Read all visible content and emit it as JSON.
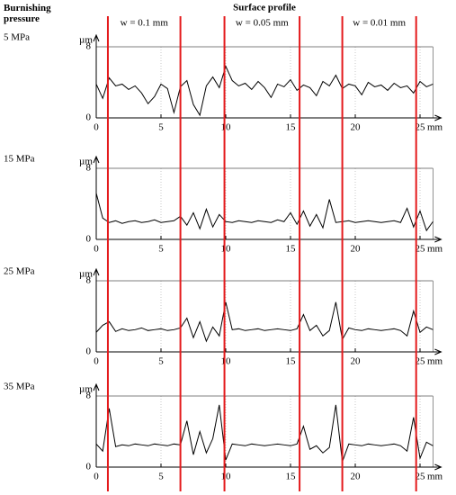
{
  "header": {
    "left": "Burnishing pressure",
    "center": "Surface profile"
  },
  "annotations": {
    "boundaries": [
      0.9,
      6.5,
      9.9,
      15.7,
      19.0,
      24.7
    ],
    "region_labels": [
      "w = 0.1 mm",
      "w = 0.05 mm",
      "w = 0.01 mm"
    ],
    "color": "#e41a1c"
  },
  "chart_data": [
    {
      "type": "line",
      "title": "5 MPa",
      "y_label": "µm",
      "x_label": "mm",
      "color": "#000000",
      "grid": true,
      "xlim": [
        0,
        26
      ],
      "ylim": [
        0,
        8
      ],
      "xticks": [
        0,
        5,
        10,
        15,
        20,
        25
      ],
      "yticks": [
        0,
        8
      ],
      "x": [
        0,
        0.5,
        1,
        1.5,
        2,
        2.5,
        3,
        3.5,
        4,
        4.5,
        5,
        5.5,
        6,
        6.5,
        7,
        7.5,
        8,
        8.5,
        9,
        9.5,
        10,
        10.5,
        11,
        11.5,
        12,
        12.5,
        13,
        13.5,
        14,
        14.5,
        15,
        15.5,
        16,
        16.5,
        17,
        17.5,
        18,
        18.5,
        19,
        19.5,
        20,
        20.5,
        21,
        21.5,
        22,
        22.5,
        23,
        23.5,
        24,
        24.5,
        25,
        25.5,
        26
      ],
      "values": [
        3.8,
        2.2,
        4.5,
        3.6,
        3.8,
        3.2,
        3.6,
        2.8,
        1.6,
        2.4,
        3.8,
        3.3,
        0.6,
        3.5,
        4.2,
        1.5,
        0.3,
        3.6,
        4.6,
        3.4,
        5.8,
        4.2,
        3.6,
        3.9,
        3.2,
        4.1,
        3.4,
        2.3,
        3.8,
        3.5,
        4.3,
        3.1,
        3.7,
        3.4,
        2.5,
        4.1,
        3.6,
        4.8,
        3.3,
        3.8,
        3.6,
        2.6,
        4.0,
        3.5,
        3.7,
        3.1,
        3.9,
        3.4,
        3.6,
        2.8,
        4.1,
        3.5,
        3.8
      ]
    },
    {
      "type": "line",
      "title": "15 MPa",
      "y_label": "µm",
      "x_label": "mm",
      "color": "#000000",
      "grid": true,
      "xlim": [
        0,
        26
      ],
      "ylim": [
        0,
        8
      ],
      "xticks": [
        0,
        5,
        10,
        15,
        20,
        25
      ],
      "yticks": [
        0,
        8
      ],
      "x": [
        0,
        0.5,
        1,
        1.5,
        2,
        2.5,
        3,
        3.5,
        4,
        4.5,
        5,
        5.5,
        6,
        6.5,
        7,
        7.5,
        8,
        8.5,
        9,
        9.5,
        10,
        10.5,
        11,
        11.5,
        12,
        12.5,
        13,
        13.5,
        14,
        14.5,
        15,
        15.5,
        16,
        16.5,
        17,
        17.5,
        18,
        18.5,
        19,
        19.5,
        20,
        20.5,
        21,
        21.5,
        22,
        22.5,
        23,
        23.5,
        24,
        24.5,
        25,
        25.5,
        26
      ],
      "values": [
        5.2,
        2.4,
        1.9,
        2.1,
        1.8,
        2.0,
        2.1,
        1.9,
        2.0,
        2.2,
        1.9,
        2.0,
        2.1,
        2.6,
        1.6,
        3.0,
        1.2,
        3.4,
        1.4,
        2.8,
        2.0,
        1.9,
        2.1,
        2.0,
        1.9,
        2.1,
        2.0,
        1.9,
        2.2,
        2.0,
        3.0,
        1.7,
        3.2,
        1.5,
        2.8,
        1.3,
        4.5,
        1.9,
        2.0,
        2.1,
        1.9,
        2.0,
        2.1,
        2.0,
        1.9,
        2.0,
        2.1,
        1.9,
        3.5,
        1.4,
        3.2,
        1.0,
        2.0
      ]
    },
    {
      "type": "line",
      "title": "25 MPa",
      "y_label": "µm",
      "x_label": "mm",
      "color": "#000000",
      "grid": true,
      "xlim": [
        0,
        26
      ],
      "ylim": [
        0,
        8
      ],
      "xticks": [
        0,
        5,
        10,
        15,
        20,
        25
      ],
      "yticks": [
        0,
        8
      ],
      "x": [
        0,
        0.5,
        1,
        1.5,
        2,
        2.5,
        3,
        3.5,
        4,
        4.5,
        5,
        5.5,
        6,
        6.5,
        7,
        7.5,
        8,
        8.5,
        9,
        9.5,
        10,
        10.5,
        11,
        11.5,
        12,
        12.5,
        13,
        13.5,
        14,
        14.5,
        15,
        15.5,
        16,
        16.5,
        17,
        17.5,
        18,
        18.5,
        19,
        19.5,
        20,
        20.5,
        21,
        21.5,
        22,
        22.5,
        23,
        23.5,
        24,
        24.5,
        25,
        25.5,
        26
      ],
      "values": [
        2.2,
        3.0,
        3.4,
        2.3,
        2.6,
        2.4,
        2.5,
        2.7,
        2.4,
        2.5,
        2.6,
        2.4,
        2.5,
        2.7,
        3.8,
        1.6,
        3.4,
        1.2,
        2.8,
        1.8,
        5.6,
        2.5,
        2.6,
        2.4,
        2.5,
        2.6,
        2.4,
        2.5,
        2.6,
        2.5,
        2.4,
        2.6,
        4.2,
        2.4,
        3.0,
        1.8,
        2.4,
        5.6,
        1.4,
        2.7,
        2.5,
        2.4,
        2.6,
        2.5,
        2.4,
        2.5,
        2.6,
        2.4,
        1.8,
        4.6,
        2.2,
        2.8,
        2.5
      ]
    },
    {
      "type": "line",
      "title": "35 MPa",
      "y_label": "µm",
      "x_label": "mm",
      "color": "#000000",
      "grid": true,
      "xlim": [
        0,
        26
      ],
      "ylim": [
        0,
        8
      ],
      "xticks": [
        0,
        5,
        10,
        15,
        20,
        25
      ],
      "yticks": [
        0,
        8
      ],
      "x": [
        0,
        0.5,
        1,
        1.5,
        2,
        2.5,
        3,
        3.5,
        4,
        4.5,
        5,
        5.5,
        6,
        6.5,
        7,
        7.5,
        8,
        8.5,
        9,
        9.5,
        10,
        10.5,
        11,
        11.5,
        12,
        12.5,
        13,
        13.5,
        14,
        14.5,
        15,
        15.5,
        16,
        16.5,
        17,
        17.5,
        18,
        18.5,
        19,
        19.5,
        20,
        20.5,
        21,
        21.5,
        22,
        22.5,
        23,
        23.5,
        24,
        24.5,
        25,
        25.5,
        26
      ],
      "values": [
        2.6,
        1.8,
        6.6,
        2.3,
        2.5,
        2.4,
        2.6,
        2.5,
        2.4,
        2.6,
        2.5,
        2.4,
        2.6,
        2.5,
        5.2,
        1.4,
        4.0,
        1.6,
        3.2,
        7.0,
        0.8,
        2.6,
        2.5,
        2.4,
        2.6,
        2.5,
        2.4,
        2.5,
        2.6,
        2.5,
        2.4,
        2.6,
        4.6,
        2.0,
        2.4,
        1.6,
        2.2,
        7.0,
        0.6,
        2.6,
        2.5,
        2.4,
        2.6,
        2.5,
        2.4,
        2.5,
        2.6,
        2.4,
        1.8,
        5.6,
        1.0,
        2.8,
        2.4
      ]
    }
  ]
}
